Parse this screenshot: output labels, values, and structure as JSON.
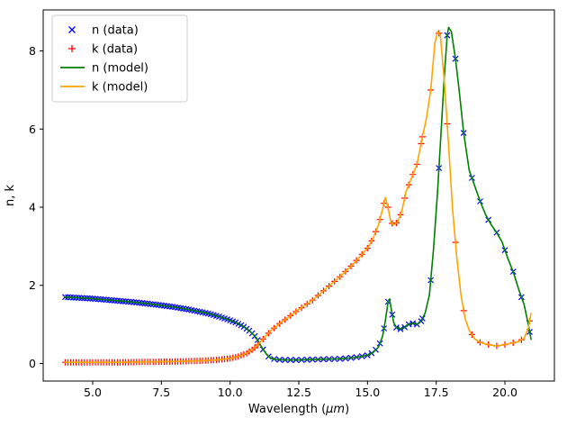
{
  "figure": {
    "background": "#ffffff"
  },
  "chart_data": {
    "type": "line+scatter",
    "title": "",
    "xlabel": "Wavelength (μm)",
    "xlabel_prefix": "Wavelength (",
    "xlabel_em": "μm",
    "xlabel_suffix": ")",
    "ylabel": "n, k",
    "xlim": [
      3.2,
      21.8
    ],
    "ylim": [
      -0.45,
      9.05
    ],
    "grid": false,
    "xticks": {
      "values": [
        5,
        7.5,
        10,
        12.5,
        15,
        17.5,
        20
      ],
      "labels": [
        "5.0",
        "7.5",
        "10.0",
        "12.5",
        "15.0",
        "17.5",
        "20.0"
      ]
    },
    "yticks": {
      "values": [
        0,
        2,
        4,
        6,
        8
      ],
      "labels": [
        "0",
        "2",
        "4",
        "6",
        "8"
      ]
    },
    "legend": {
      "position": "upper left",
      "entries": [
        {
          "label": "n (data)",
          "kind": "marker",
          "marker": "x",
          "color": "#0000ff"
        },
        {
          "label": "k (data)",
          "kind": "marker",
          "marker": "+",
          "color": "#ff0000"
        },
        {
          "label": "n (model)",
          "kind": "line",
          "color": "#008000"
        },
        {
          "label": "k (model)",
          "kind": "line",
          "color": "#ffa500"
        }
      ]
    },
    "series": [
      {
        "name": "n (model)",
        "type": "line",
        "color": "#008000",
        "x": [
          4.0,
          4.5,
          5.0,
          5.5,
          6.0,
          6.5,
          7.0,
          7.5,
          8.0,
          8.5,
          9.0,
          9.3,
          9.6,
          9.9,
          10.2,
          10.5,
          10.7,
          10.9,
          11.0,
          11.1,
          11.2,
          11.3,
          11.4,
          11.5,
          11.7,
          12.0,
          12.5,
          13.0,
          13.5,
          14.0,
          14.5,
          15.0,
          15.2,
          15.4,
          15.55,
          15.65,
          15.75,
          15.8,
          15.85,
          15.95,
          16.05,
          16.2,
          16.35,
          16.5,
          16.65,
          16.8,
          16.95,
          17.1,
          17.25,
          17.4,
          17.55,
          17.7,
          17.8,
          17.9,
          17.95,
          18.05,
          18.2,
          18.35,
          18.5,
          18.7,
          18.9,
          19.1,
          19.3,
          19.5,
          19.7,
          19.9,
          20.1,
          20.3,
          20.5,
          20.7,
          20.85,
          20.95
        ],
        "y": [
          1.7,
          1.68,
          1.66,
          1.63,
          1.6,
          1.57,
          1.53,
          1.49,
          1.44,
          1.38,
          1.31,
          1.26,
          1.2,
          1.13,
          1.05,
          0.94,
          0.84,
          0.7,
          0.6,
          0.48,
          0.36,
          0.26,
          0.18,
          0.13,
          0.1,
          0.09,
          0.09,
          0.1,
          0.11,
          0.12,
          0.15,
          0.21,
          0.28,
          0.42,
          0.7,
          1.1,
          1.58,
          1.65,
          1.45,
          1.05,
          0.92,
          0.88,
          0.93,
          1.0,
          1.03,
          1.0,
          1.08,
          1.3,
          1.75,
          2.9,
          4.4,
          6.2,
          7.4,
          8.4,
          8.6,
          8.5,
          7.8,
          6.9,
          5.9,
          4.95,
          4.55,
          4.15,
          3.8,
          3.55,
          3.35,
          3.1,
          2.7,
          2.35,
          1.9,
          1.5,
          1.0,
          0.62
        ]
      },
      {
        "name": "k (model)",
        "type": "line",
        "color": "#ffa500",
        "x": [
          4.0,
          5.0,
          6.0,
          7.0,
          8.0,
          8.5,
          9.0,
          9.5,
          10.0,
          10.3,
          10.6,
          10.9,
          11.1,
          11.3,
          11.5,
          11.8,
          12.0,
          12.5,
          13.0,
          13.5,
          14.0,
          14.5,
          15.0,
          15.2,
          15.4,
          15.55,
          15.65,
          15.75,
          15.85,
          15.95,
          16.1,
          16.25,
          16.4,
          16.6,
          16.8,
          17.0,
          17.15,
          17.3,
          17.45,
          17.55,
          17.65,
          17.8,
          17.95,
          18.1,
          18.25,
          18.4,
          18.55,
          18.7,
          18.9,
          19.1,
          19.3,
          19.5,
          19.7,
          19.9,
          20.1,
          20.3,
          20.5,
          20.7,
          20.85,
          20.95
        ],
        "y": [
          0.03,
          0.03,
          0.03,
          0.04,
          0.05,
          0.06,
          0.07,
          0.09,
          0.13,
          0.18,
          0.26,
          0.4,
          0.55,
          0.7,
          0.85,
          1.02,
          1.12,
          1.38,
          1.62,
          1.92,
          2.22,
          2.56,
          2.95,
          3.2,
          3.55,
          3.95,
          4.25,
          4.0,
          3.62,
          3.55,
          3.62,
          3.9,
          4.4,
          4.75,
          5.1,
          5.8,
          6.3,
          7.0,
          8.2,
          8.5,
          8.4,
          7.2,
          5.6,
          3.9,
          2.7,
          1.75,
          1.15,
          0.85,
          0.63,
          0.54,
          0.5,
          0.47,
          0.45,
          0.47,
          0.5,
          0.53,
          0.56,
          0.65,
          0.9,
          1.28
        ]
      }
    ],
    "scatter": [
      {
        "name": "n (data)",
        "marker": "x",
        "color": "#0000ff",
        "from_series": 0,
        "segments": [
          [
            4.0,
            10.95,
            0.1
          ],
          [
            11.0,
            14.9,
            0.2
          ],
          [
            15.0,
            16.95,
            0.15
          ],
          [
            17.0,
            20.95,
            0.3
          ]
        ]
      },
      {
        "name": "k (data)",
        "marker": "+",
        "color": "#ff0000",
        "from_series": 1,
        "segments": [
          [
            4.0,
            10.95,
            0.1
          ],
          [
            11.0,
            14.9,
            0.2
          ],
          [
            15.0,
            16.95,
            0.15
          ],
          [
            17.0,
            20.95,
            0.3
          ]
        ]
      }
    ]
  }
}
